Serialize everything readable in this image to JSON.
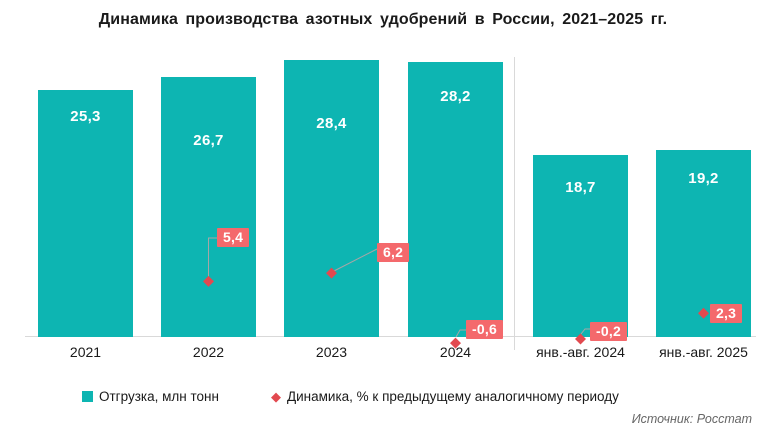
{
  "title": "Динамика производства азотных удобрений в России, 2021–2025 гг.",
  "source": "Источник: Росстат",
  "legend": {
    "shipment_label": "Отгрузка, млн тонн",
    "dynamics_label": "Динамика, % к предыдущему аналогичному периоду"
  },
  "colors": {
    "bar": "#0db5b2",
    "marker": "#e2494f",
    "marker_label_bg": "#f4696c",
    "axis_line": "#d9d9d9",
    "text": "#1a1a1a",
    "bar_label_text": "#ffffff",
    "source_text": "#666666",
    "connector": "#a6a6a6"
  },
  "chart_data": {
    "type": "bar",
    "categories": [
      "2021",
      "2022",
      "2023",
      "2024",
      "янв.-авг. 2024",
      "янв.-авг. 2025"
    ],
    "series": [
      {
        "name": "Отгрузка, млн тонн",
        "type": "bar",
        "values": [
          25.3,
          26.7,
          28.4,
          28.2,
          18.7,
          19.2
        ],
        "labels": [
          "25,3",
          "26,7",
          "28,4",
          "28,2",
          "18,7",
          "19,2"
        ],
        "color": "#0db5b2"
      },
      {
        "name": "Динамика, % к предыдущему аналогичному периоду",
        "type": "scatter",
        "marker": "diamond",
        "values": [
          null,
          5.4,
          6.2,
          -0.6,
          -0.2,
          2.3
        ],
        "labels": [
          null,
          "5,4",
          "6,2",
          "-0,6",
          "-0,2",
          "2,3"
        ],
        "color": "#e2494f"
      }
    ],
    "title": "Динамика производства азотных удобрений в России, 2021–2025 гг.",
    "xlabel": "",
    "ylabel": "",
    "ylim": [
      0,
      34.5
    ],
    "grid": false,
    "legend_position": "bottom",
    "notes": "vertical divider separates full years 2021-2024 from Jan-Aug periods"
  }
}
